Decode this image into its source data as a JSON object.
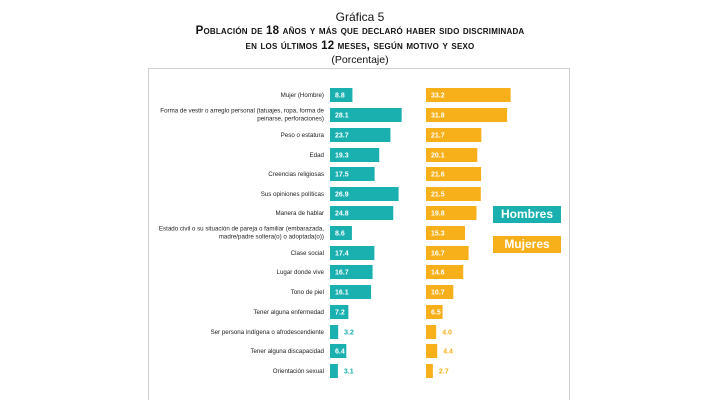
{
  "header": {
    "number": "Gráfica 5",
    "title_line1": "Población de 18 años y más que declaró haber sido discriminada",
    "title_line2": "en los últimos 12 meses, según motivo y sexo",
    "subtitle": "(Porcentaje)"
  },
  "colors": {
    "hombres": "#1ab0b0",
    "mujeres": "#f7b01a",
    "white_label": "#ffffff"
  },
  "chart_data": {
    "type": "bar",
    "orientation": "horizontal",
    "layout": "two side-by-side panels sharing category labels",
    "legend": [
      "Hombres",
      "Mujeres"
    ],
    "categories": [
      [
        "Mujer (Hombre)"
      ],
      [
        "Forma de vestir o arreglo personal (tatuajes, ropa, forma de",
        "peinarse, perforaciones)"
      ],
      [
        "Peso o estatura"
      ],
      [
        "Edad"
      ],
      [
        "Creencias religiosas"
      ],
      [
        "Sus opiniones políticas"
      ],
      [
        "Manera de hablar"
      ],
      [
        "Estado civil o su situación de pareja o familiar (embarazada,",
        "madre/padre soltera(o) o adoptada(o))"
      ],
      [
        "Clase social"
      ],
      [
        "Lugar donde vive"
      ],
      [
        "Tono de piel"
      ],
      [
        "Tener alguna enfermedad"
      ],
      [
        "Ser persona indígena o afrodescendiente"
      ],
      [
        "Tener alguna discapacidad"
      ],
      [
        "Orientación sexual"
      ]
    ],
    "series": [
      {
        "name": "Hombres",
        "labels": [
          "8.8",
          "28.1",
          "23.7",
          "19.3",
          "17.5",
          "26.9",
          "24.8",
          "8.6",
          "17.4",
          "16.7",
          "16.1",
          "7.2",
          "3.2",
          "6.4",
          "3.1"
        ],
        "values": [
          8.8,
          28.1,
          23.7,
          19.3,
          17.5,
          26.9,
          24.8,
          8.6,
          17.4,
          16.7,
          16.1,
          7.2,
          3.2,
          6.4,
          3.1
        ]
      },
      {
        "name": "Mujeres",
        "labels": [
          "33.2",
          "31.8",
          "21.7",
          "20.1",
          "21.6",
          "21.5",
          "19.8",
          "15.3",
          "16.7",
          "14.6",
          "10.7",
          "6.5",
          "4.0",
          "4.4",
          "2.7"
        ],
        "values": [
          33.2,
          31.8,
          21.7,
          20.1,
          21.6,
          21.5,
          19.8,
          15.3,
          16.7,
          14.6,
          10.7,
          6.5,
          4.0,
          4.4,
          2.7
        ]
      }
    ],
    "xlim": [
      0,
      40
    ],
    "grid": false,
    "legend_position": "right"
  }
}
